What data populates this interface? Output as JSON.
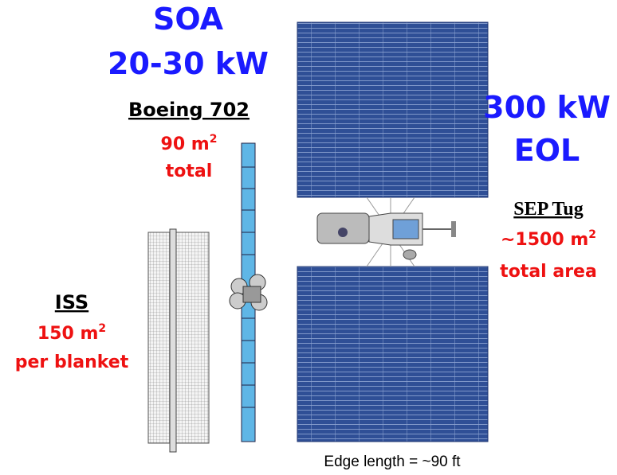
{
  "soa": {
    "title": "SOA",
    "power": "20-30 kW"
  },
  "boeing": {
    "name": "Boeing 702",
    "area": {
      "text": "90 m",
      "sup": "2"
    },
    "note": "total"
  },
  "iss": {
    "name": "ISS",
    "area": {
      "text": "150 m",
      "sup": "2"
    },
    "note": "per blanket"
  },
  "sep": {
    "power": "300 kW",
    "eol": "EOL",
    "name": "SEP Tug",
    "area": {
      "text": "~1500 m",
      "sup": "2"
    },
    "note": "total area"
  },
  "caption": "Edge length = ~90 ft"
}
